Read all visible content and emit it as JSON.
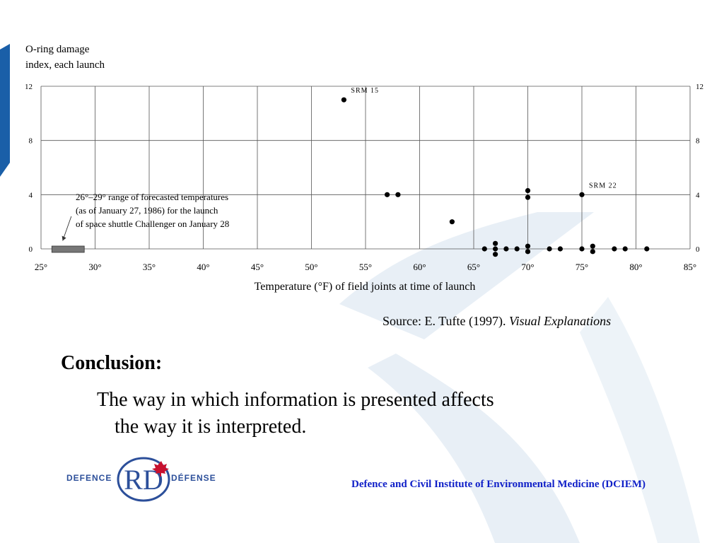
{
  "chart_data": {
    "type": "scatter",
    "title": "",
    "ylabel_line1": "O-ring damage",
    "ylabel_line2": "index, each launch",
    "xlabel": "Temperature (°F) of field joints at time of launch",
    "xlim": [
      25,
      85
    ],
    "ylim": [
      0,
      12
    ],
    "x_ticks": [
      "25°",
      "30°",
      "35°",
      "40°",
      "45°",
      "50°",
      "55°",
      "60°",
      "65°",
      "70°",
      "75°",
      "80°",
      "85°"
    ],
    "y_ticks": [
      "0",
      "4",
      "8",
      "12"
    ],
    "grid": true,
    "points": [
      {
        "x": 53,
        "y": 11
      },
      {
        "x": 57,
        "y": 4
      },
      {
        "x": 58,
        "y": 4
      },
      {
        "x": 63,
        "y": 2
      },
      {
        "x": 66,
        "y": 0
      },
      {
        "x": 67,
        "y": 0
      },
      {
        "x": 67,
        "y": 0.4
      },
      {
        "x": 67,
        "y": -0.4
      },
      {
        "x": 68,
        "y": 0
      },
      {
        "x": 69,
        "y": 0
      },
      {
        "x": 70,
        "y": 4.3
      },
      {
        "x": 70,
        "y": 3.8
      },
      {
        "x": 70,
        "y": 0.2
      },
      {
        "x": 70,
        "y": -0.2
      },
      {
        "x": 72,
        "y": 0
      },
      {
        "x": 73,
        "y": 0
      },
      {
        "x": 75,
        "y": 4
      },
      {
        "x": 75,
        "y": 0
      },
      {
        "x": 76,
        "y": 0.2
      },
      {
        "x": 76,
        "y": -0.2
      },
      {
        "x": 78,
        "y": 0
      },
      {
        "x": 79,
        "y": 0
      },
      {
        "x": 81,
        "y": 0
      }
    ],
    "point_labels": [
      {
        "text": "SRM 15",
        "x": 53,
        "y": 11
      },
      {
        "text": "SRM 22",
        "x": 75,
        "y": 4
      }
    ],
    "forecast_range": {
      "x_start": 26,
      "x_end": 29
    },
    "annotation_lines": [
      "26°–29° range of forecasted temperatures",
      "(as of January 27, 1986) for the launch",
      "of space shuttle Challenger on January 28"
    ]
  },
  "source": {
    "prefix": "Source: E. Tufte (1997). ",
    "title": "Visual Explanations"
  },
  "conclusion": {
    "heading": "Conclusion:",
    "line1": "The way in which information is presented affects",
    "line2": "the way it is interpreted."
  },
  "logo": {
    "left_text": "DEFENCE",
    "right_text": "DÉFENSE",
    "mark": "RD"
  },
  "footer": {
    "text": "Defence and Civil Institute of Environmental Medicine (DCIEM)"
  },
  "colors": {
    "footer": "#1020c8",
    "logo_blue": "#2c4f9a",
    "background_swoosh": "#e3ecf4",
    "left_stripe": "#1a5fa8",
    "forecast_bar": "#777777"
  }
}
